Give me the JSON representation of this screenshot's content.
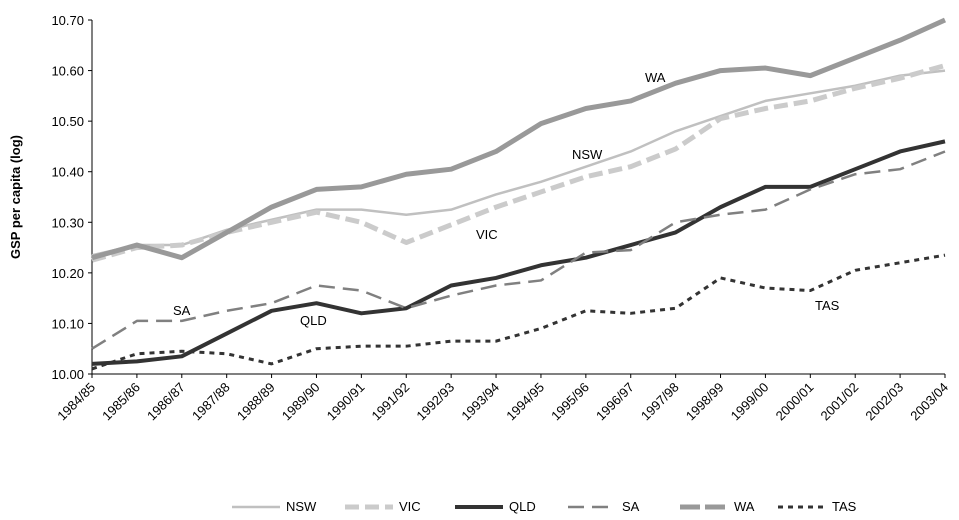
{
  "chart_data": {
    "type": "line",
    "y_label": "GSP per capita (log)",
    "categories": [
      "1984/85",
      "1985/86",
      "1986/87",
      "1987/88",
      "1988/89",
      "1989/90",
      "1990/91",
      "1991/92",
      "1992/93",
      "1993/94",
      "1994/95",
      "1995/96",
      "1996/97",
      "1997/98",
      "1998/99",
      "1999/00",
      "2000/01",
      "2001/02",
      "2002/03",
      "2003/04"
    ],
    "series": [
      {
        "name": "NSW",
        "color": "#c0c0c0",
        "dash": "solid",
        "values": [
          10.235,
          10.255,
          10.255,
          10.285,
          10.305,
          10.325,
          10.325,
          10.315,
          10.325,
          10.355,
          10.38,
          10.41,
          10.44,
          10.48,
          10.51,
          10.54,
          10.555,
          10.57,
          10.59,
          10.6
        ]
      },
      {
        "name": "VIC",
        "color": "#cbcbcb",
        "dash": "dashed",
        "values": [
          10.225,
          10.25,
          10.255,
          10.28,
          10.3,
          10.32,
          10.3,
          10.26,
          10.295,
          10.33,
          10.36,
          10.39,
          10.41,
          10.445,
          10.505,
          10.525,
          10.54,
          10.565,
          10.585,
          10.61
        ]
      },
      {
        "name": "QLD",
        "color": "#333333",
        "dash": "solid",
        "values": [
          10.02,
          10.025,
          10.035,
          10.08,
          10.125,
          10.14,
          10.12,
          10.13,
          10.175,
          10.19,
          10.215,
          10.23,
          10.255,
          10.28,
          10.33,
          10.37,
          10.37,
          10.405,
          10.44,
          10.46
        ]
      },
      {
        "name": "SA",
        "color": "#808080",
        "dash": "dashed",
        "values": [
          10.05,
          10.105,
          10.105,
          10.125,
          10.14,
          10.175,
          10.165,
          10.13,
          10.155,
          10.175,
          10.185,
          10.24,
          10.245,
          10.3,
          10.315,
          10.325,
          10.365,
          10.395,
          10.405,
          10.44
        ]
      },
      {
        "name": "WA",
        "color": "#999999",
        "dash": "solid",
        "values": [
          10.23,
          10.255,
          10.23,
          10.28,
          10.33,
          10.365,
          10.37,
          10.395,
          10.405,
          10.44,
          10.495,
          10.525,
          10.54,
          10.575,
          10.6,
          10.605,
          10.59,
          10.625,
          10.66,
          10.7
        ]
      },
      {
        "name": "TAS",
        "color": "#333333",
        "dash": "dotted",
        "values": [
          10.01,
          10.04,
          10.045,
          10.04,
          10.02,
          10.05,
          10.055,
          10.055,
          10.065,
          10.065,
          10.09,
          10.125,
          10.12,
          10.13,
          10.19,
          10.17,
          10.165,
          10.205,
          10.22,
          10.235
        ]
      }
    ],
    "annotations": [
      "WA",
      "NSW",
      "VIC",
      "SA",
      "QLD",
      "TAS"
    ],
    "ylim": [
      10.0,
      10.7
    ],
    "yticks": [
      {
        "value": 10.0,
        "label": "10.00"
      },
      {
        "value": 10.1,
        "label": "10.10"
      },
      {
        "value": 10.2,
        "label": "10.20"
      },
      {
        "value": 10.3,
        "label": "10.30"
      },
      {
        "value": 10.4,
        "label": "10.40"
      },
      {
        "value": 10.5,
        "label": "10.50"
      },
      {
        "value": 10.6,
        "label": "10.60"
      },
      {
        "value": 10.7,
        "label": "10.70"
      }
    ],
    "grid": false,
    "legend": "bottom"
  }
}
